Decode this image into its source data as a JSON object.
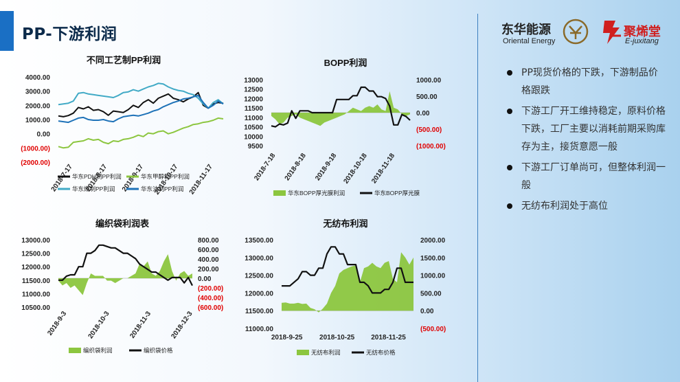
{
  "page": {
    "title": "PP-下游利润",
    "logo_left_cn": "东华能源",
    "logo_left_en": "Oriental Energy",
    "logo_right_cn": "聚烯堂",
    "logo_right_en": "E-juxitang"
  },
  "bullets": [
    "PP现货价格的下跌，下游制品价格跟跌",
    "下游工厂开工维持稳定，原料价格下跌，工厂主要以消耗前期采购库存为主，接货意愿一般",
    "下游工厂订单尚可，但整体利润一般",
    "无纺布利润处于高位"
  ],
  "colors": {
    "black": "#111111",
    "green": "#8cc63f",
    "teal": "#41aac6",
    "blue": "#1e72b8",
    "red": "#e00000"
  },
  "chart_data": [
    {
      "type": "line",
      "title": "不同工艺制PP利润",
      "ylim": [
        -2000,
        4000
      ],
      "y_ticks": [
        "4000.00",
        "3000.00",
        "2000.00",
        "1000.00",
        "0.00",
        "(1000.00)",
        "(2000.00)"
      ],
      "x_ticks": [
        "2018-7-17",
        "2018-8-17",
        "2018-9-17",
        "2018-10-17",
        "2018-11-17"
      ],
      "series": [
        {
          "name": "华东PDH制PP利润",
          "color": "#111111",
          "values": [
            1250,
            1200,
            1280,
            1450,
            1850,
            1750,
            1900,
            1650,
            1700,
            1550,
            1300,
            1600,
            1550,
            1500,
            1700,
            2000,
            1850,
            2200,
            2400,
            2150,
            2500,
            2650,
            2800,
            2500,
            2400,
            2250,
            2450,
            2600,
            2900,
            2000,
            1800,
            2100,
            2200,
            2150
          ]
        },
        {
          "name": "华东甲醇制PP利润",
          "color": "#8cc63f",
          "values": [
            -900,
            -1000,
            -950,
            -600,
            -550,
            -500,
            -350,
            -450,
            -400,
            -600,
            -700,
            -500,
            -550,
            -400,
            -350,
            -250,
            -100,
            -200,
            50,
            0,
            150,
            200,
            0,
            100,
            250,
            400,
            500,
            650,
            700,
            800,
            850,
            950,
            1100,
            1050
          ]
        },
        {
          "name": "华东煤制PP利润",
          "color": "#41aac6",
          "values": [
            2050,
            2100,
            2150,
            2300,
            2850,
            2900,
            2800,
            2750,
            2700,
            2650,
            2600,
            2550,
            2700,
            2900,
            2950,
            3100,
            3000,
            3150,
            3300,
            3400,
            3550,
            3500,
            3300,
            3150,
            3050,
            3000,
            2850,
            2750,
            2500,
            2100,
            1800,
            2200,
            2400,
            2100
          ]
        },
        {
          "name": "华东油制PP利润",
          "color": "#1e72b8",
          "values": [
            900,
            850,
            800,
            950,
            1100,
            1150,
            1000,
            950,
            950,
            1000,
            900,
            850,
            1050,
            1200,
            1250,
            1300,
            1250,
            1350,
            1450,
            1600,
            1700,
            1900,
            2050,
            2200,
            2300,
            2450,
            2500,
            2600,
            2700,
            2200,
            1800,
            2000,
            2300,
            2100
          ]
        }
      ]
    },
    {
      "type": "bar+line",
      "title": "BOPP利润",
      "ylim_left": [
        9500,
        13000
      ],
      "ylim_right": [
        -1000,
        1000
      ],
      "y_ticks_left": [
        "13000",
        "12500",
        "12000",
        "11500",
        "11000",
        "10500",
        "10000",
        "9500"
      ],
      "y_ticks_right": [
        "1000.00",
        "500.00",
        "0.00",
        "(500.00)",
        "(1000.00)"
      ],
      "x_ticks": [
        "2018-7-18",
        "2018-8-18",
        "2018-9-18",
        "2018-10-18",
        "2018-11-18"
      ],
      "series": [
        {
          "name": "华东BOPP厚光膜利润",
          "kind": "area",
          "axis": "right",
          "color": "#8cc63f",
          "values": [
            -100,
            -200,
            -350,
            -300,
            -150,
            -100,
            -50,
            -150,
            -200,
            -250,
            -300,
            -350,
            -400,
            -300,
            -250,
            -200,
            -150,
            -100,
            -50,
            50,
            150,
            100,
            50,
            150,
            200,
            150,
            250,
            100,
            50,
            650,
            150,
            100,
            -50,
            -100,
            -50
          ]
        },
        {
          "name": "华东BOPP厚光膜",
          "kind": "line",
          "axis": "left",
          "color": "#111111",
          "values": [
            10550,
            10500,
            10650,
            10600,
            10700,
            11350,
            10950,
            11350,
            11350,
            11350,
            11250,
            11250,
            11250,
            11250,
            11250,
            11250,
            11950,
            11950,
            11950,
            11950,
            12150,
            12150,
            12600,
            12600,
            12400,
            12400,
            12100,
            12100,
            12000,
            11600,
            10600,
            10600,
            11150,
            11050,
            10850
          ]
        }
      ]
    },
    {
      "type": "bar+line",
      "title": "编织袋利润表",
      "ylim_left": [
        10500,
        13000
      ],
      "ylim_right": [
        -600,
        800
      ],
      "y_ticks_left": [
        "13000.00",
        "12500.00",
        "12000.00",
        "11500.00",
        "11000.00",
        "10500.00"
      ],
      "y_ticks_right": [
        "800.00",
        "600.00",
        "400.00",
        "200.00",
        "0.00",
        "(200.00)",
        "(400.00)",
        "(600.00)"
      ],
      "x_ticks": [
        "2018-9-3",
        "2018-10-3",
        "2018-11-3",
        "2018-12-3"
      ],
      "series": [
        {
          "name": "编织袋利润",
          "kind": "area",
          "axis": "right",
          "color": "#8cc63f",
          "values": [
            -50,
            -150,
            -100,
            -200,
            -150,
            -250,
            -350,
            -100,
            100,
            50,
            50,
            50,
            -50,
            -50,
            -100,
            -50,
            0,
            0,
            50,
            100,
            300,
            250,
            350,
            100,
            50,
            150,
            350,
            500,
            150,
            -50,
            100,
            150,
            50,
            100
          ]
        },
        {
          "name": "编织袋价格",
          "kind": "line",
          "axis": "left",
          "color": "#111111",
          "values": [
            11500,
            11500,
            11650,
            11700,
            11700,
            12000,
            12000,
            12500,
            12500,
            12600,
            12800,
            12800,
            12750,
            12700,
            12700,
            12600,
            12500,
            12500,
            12400,
            12300,
            12100,
            12000,
            11900,
            11800,
            11800,
            11700,
            11600,
            11500,
            11600,
            11600,
            11600,
            11400,
            11600,
            11300
          ]
        }
      ]
    },
    {
      "type": "bar+line",
      "title": "无纺布利润",
      "ylim_left": [
        11000,
        13500
      ],
      "ylim_right": [
        -500,
        2000
      ],
      "y_ticks_left": [
        "13500.00",
        "13000.00",
        "12500.00",
        "12000.00",
        "11500.00",
        "11000.00"
      ],
      "y_ticks_right": [
        "2000.00",
        "1500.00",
        "1000.00",
        "500.00",
        "0.00",
        "(500.00)"
      ],
      "x_ticks": [
        "2018-9-25",
        "2018-10-25",
        "2018-11-25"
      ],
      "series": [
        {
          "name": "无纺布利润",
          "kind": "area",
          "axis": "right",
          "color": "#8cc63f",
          "values": [
            220,
            230,
            200,
            200,
            220,
            190,
            200,
            80,
            40,
            -50,
            60,
            200,
            500,
            700,
            1050,
            1150,
            1200,
            1250,
            1280,
            800,
            1200,
            1250,
            1350,
            1250,
            1200,
            1350,
            1400,
            900,
            800,
            1650,
            1500,
            1300,
            1500
          ]
        },
        {
          "name": "无纺布价格",
          "kind": "line",
          "axis": "left",
          "color": "#111111",
          "values": [
            12200,
            12200,
            12200,
            12300,
            12400,
            12600,
            12600,
            12500,
            12500,
            12700,
            12700,
            13100,
            13300,
            13300,
            13100,
            13100,
            12800,
            12800,
            12800,
            12300,
            12300,
            12200,
            12000,
            12000,
            12000,
            12100,
            12100,
            12300,
            12700,
            12700,
            12300,
            12300,
            12300
          ]
        }
      ]
    }
  ]
}
